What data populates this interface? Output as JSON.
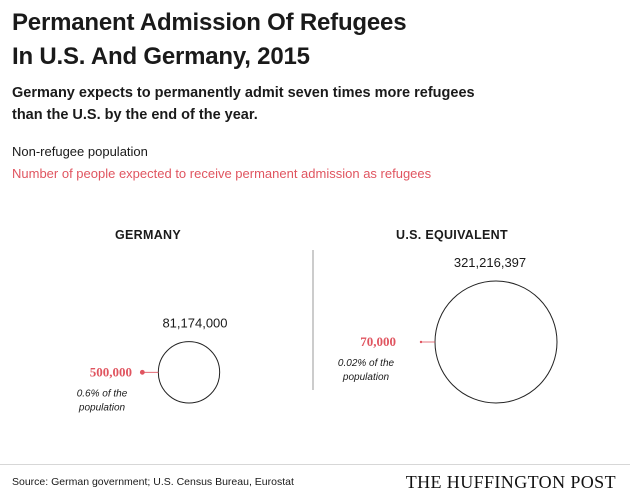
{
  "title_lines": [
    "Permanent Admission Of Refugees",
    "In U.S. And Germany, 2015"
  ],
  "subtitle_lines": [
    "Germany expects to permanently admit seven times more refugees",
    "than the U.S. by the end of the year."
  ],
  "legend": {
    "base": "Non-refugee population",
    "refugee": "Number of people expected to receive permanent admission as refugees"
  },
  "colors": {
    "refugee": "#e05560",
    "text": "#1a1a1a",
    "divider": "#9a9a9a"
  },
  "chart_data": {
    "type": "bubble",
    "panels": [
      {
        "heading": "GERMANY",
        "population": 81174000,
        "population_label": "81,174,000",
        "refugees": 500000,
        "refugees_label": "500,000",
        "share_lines": [
          "0.6% of the",
          "population"
        ]
      },
      {
        "heading": "U.S. EQUIVALENT",
        "population": 321216397,
        "population_label": "321,216,397",
        "refugees": 70000,
        "refugees_label": "70,000",
        "share_lines": [
          "0.02% of the",
          "population"
        ]
      }
    ]
  },
  "source": "Source:  German government; U.S. Census Bureau, Eurostat",
  "brand": "THE HUFFINGTON POST"
}
